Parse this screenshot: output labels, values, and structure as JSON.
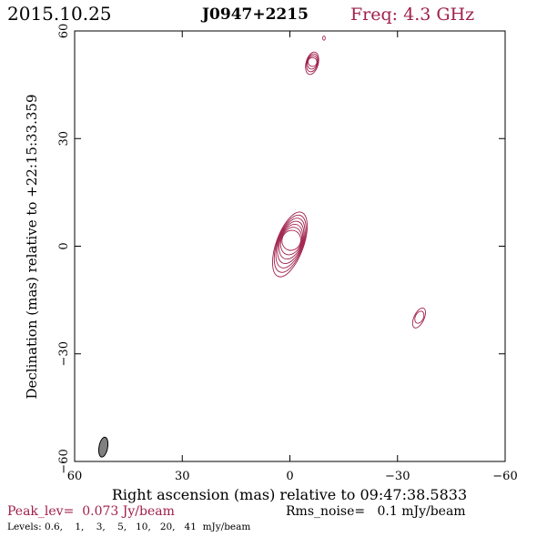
{
  "header": {
    "date": "2015.10.25",
    "source": "J0947+2215",
    "freq": "Freq: 4.3 GHz"
  },
  "footer": {
    "peak": "Peak_lev=  0.073 Jy/beam",
    "rms": "Rms_noise=   0.1 mJy/beam",
    "levels": "Levels: 0.6,    1,    3,    5,   10,   20,   41  mJy/beam"
  },
  "colors": {
    "accent": "#a0204a",
    "axis": "#000000",
    "beam": "#808080"
  },
  "chart_data": {
    "type": "contour",
    "xlabel": "Right ascension (mas) relative to 09:47:38.5833",
    "ylabel": "Declination (mas) relative to +22:15:33.359",
    "xlim": [
      60,
      -60
    ],
    "ylim": [
      -60,
      60
    ],
    "xticks": [
      60,
      30,
      0,
      -30,
      -60
    ],
    "yticks": [
      60,
      30,
      0,
      -30,
      -60
    ],
    "xtick_labels": [
      "60",
      "30",
      "0",
      "−30",
      "−60"
    ],
    "ytick_labels": [
      "60",
      "30",
      "0",
      "−30",
      "−60"
    ],
    "contour_levels_mJy": [
      0.6,
      1,
      3,
      5,
      10,
      20,
      41
    ],
    "peak_Jy_per_beam": 0.073,
    "rms_mJy_per_beam": 0.1,
    "components": [
      {
        "ra": 0,
        "dec": 0.5,
        "major": 9.5,
        "minor": 3.8,
        "pa": 20,
        "levels": 7
      },
      {
        "ra": -6.2,
        "dec": 51,
        "major": 3.2,
        "minor": 1.7,
        "pa": 15,
        "levels": 4
      },
      {
        "ra": -36,
        "dec": -20,
        "major": 3.0,
        "minor": 1.4,
        "pa": 25,
        "levels": 2
      },
      {
        "ra": -9.5,
        "dec": 58,
        "major": 0.6,
        "minor": 0.35,
        "pa": 0,
        "levels": 1
      }
    ],
    "beam": {
      "ra": 52,
      "dec": -56,
      "major": 2.8,
      "minor": 1.2,
      "pa": 10
    }
  }
}
